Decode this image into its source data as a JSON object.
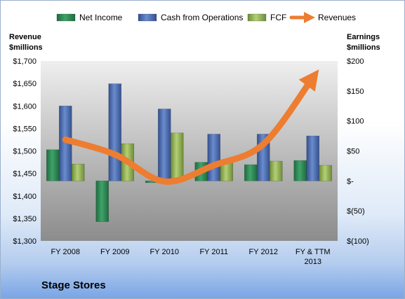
{
  "chart_data": {
    "type": "bar",
    "title": "Stage Stores",
    "categories": [
      "FY 2008",
      "FY 2009",
      "FY 2010",
      "FY 2011",
      "FY 2012",
      "FY & TTM 2013"
    ],
    "left_axis": {
      "title_line1": "Revenue",
      "title_line2": "$millions",
      "range": [
        1300,
        1700
      ],
      "ticks": [
        "$1,300",
        "$1,350",
        "$1,400",
        "$1,450",
        "$1,500",
        "$1,550",
        "$1,600",
        "$1,650",
        "$1,700"
      ]
    },
    "right_axis": {
      "title_line1": "Earnings",
      "title_line2": "$millions",
      "range": [
        -100,
        200
      ],
      "ticks": [
        "$(100)",
        "$(50)",
        "$-",
        "$50",
        "$100",
        "$150",
        "$200"
      ]
    },
    "series": [
      {
        "name": "Net Income",
        "type": "bar",
        "axis": "right",
        "color": "#2e8b57",
        "values": [
          52,
          -68,
          -3,
          31,
          27,
          34
        ]
      },
      {
        "name": "Cash from Operations",
        "type": "bar",
        "axis": "right",
        "color": "#4f6fb0",
        "values": [
          125,
          162,
          120,
          78,
          78,
          75
        ]
      },
      {
        "name": "FCF",
        "type": "bar",
        "axis": "right",
        "color": "#9bbb59",
        "values": [
          28,
          62,
          80,
          34,
          33,
          26
        ]
      },
      {
        "name": "Revenues",
        "type": "line",
        "axis": "left",
        "color": "#ed7d31",
        "values": [
          1525,
          1492,
          1432,
          1468,
          1515,
          1663
        ]
      }
    ],
    "legend_position": "top",
    "grid": false
  },
  "colors": {
    "plot_band_top": "#efefef",
    "plot_band_bottom": "#8c8c8c"
  }
}
